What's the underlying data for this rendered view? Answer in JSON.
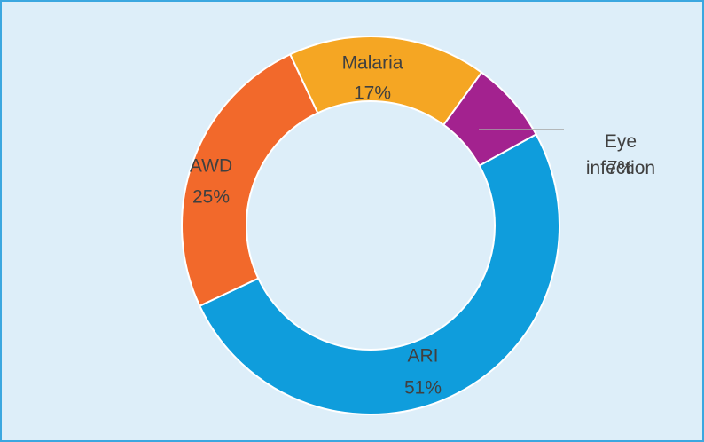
{
  "chart_data": {
    "type": "donut",
    "categories": [
      "ARI",
      "AWD",
      "Malaria",
      "Eye infection"
    ],
    "values": [
      51,
      25,
      17,
      7
    ],
    "value_labels": [
      "51%",
      "25%",
      "17%",
      "7%"
    ],
    "colors": [
      "#0f9ddc",
      "#f2692b",
      "#f5a623",
      "#a3228f"
    ]
  }
}
